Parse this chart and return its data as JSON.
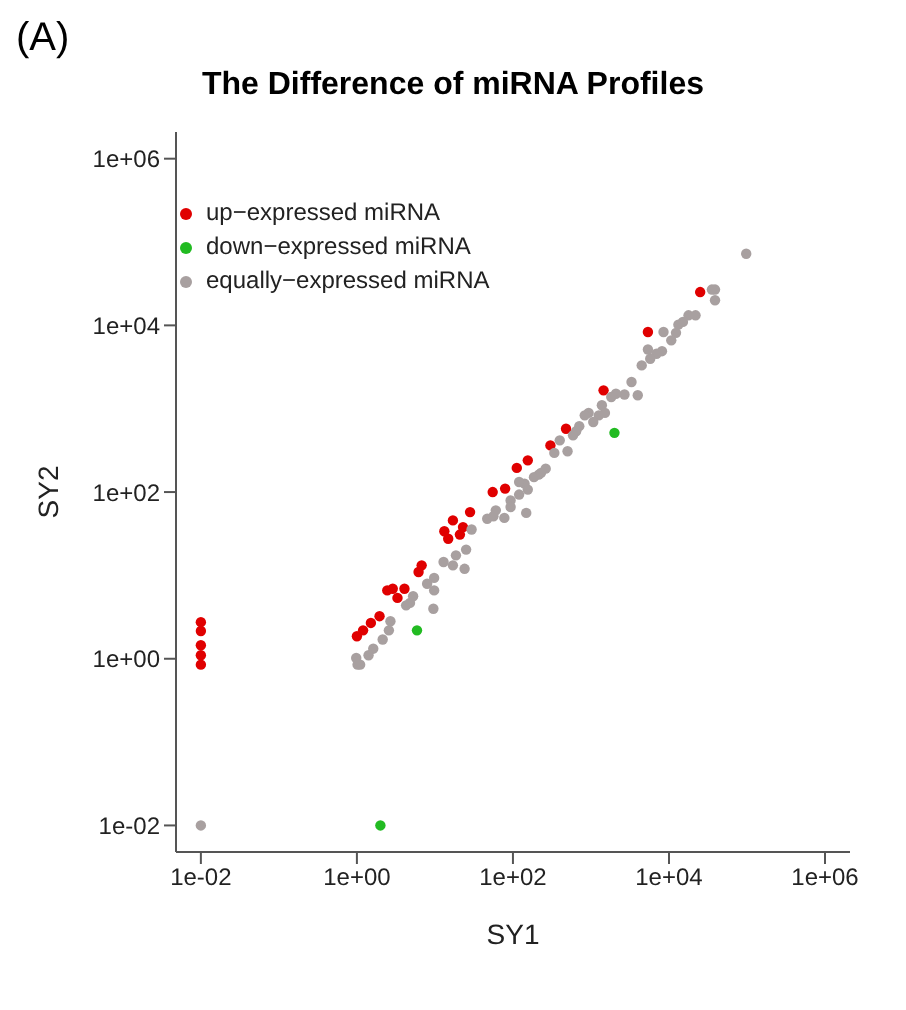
{
  "chart_data": {
    "type": "scatter",
    "title": "The Difference of miRNA Profiles",
    "xlabel": "SY1",
    "ylabel": "SY2",
    "annotations": [
      "(A)"
    ],
    "log": "xy",
    "grid": false,
    "legend": "top left",
    "marker": "circle",
    "xlim": [
      0.0048,
      2090000
    ],
    "ylim": [
      0.0048,
      2090000
    ],
    "xticks": [
      {
        "value": 0.01,
        "label": "1e-02"
      },
      {
        "value": 1,
        "label": "1e+00"
      },
      {
        "value": 100,
        "label": "1e+02"
      },
      {
        "value": 10000,
        "label": "1e+04"
      },
      {
        "value": 1000000,
        "label": "1e+06"
      }
    ],
    "yticks": [
      {
        "value": 0.01,
        "label": "1e-02"
      },
      {
        "value": 1,
        "label": "1e+00"
      },
      {
        "value": 100,
        "label": "1e+02"
      },
      {
        "value": 10000,
        "label": "1e+04"
      },
      {
        "value": 1000000,
        "label": "1e+06"
      }
    ],
    "series": [
      {
        "name": "up−expressed miRNA",
        "color": "#e00000",
        "x": [
          25100,
          5370,
          1450,
          479,
          302,
          155,
          112,
          79.4,
          55,
          28.2,
          17,
          22.9,
          20.9,
          14.8,
          13.2,
          6.76,
          6.17,
          4.07,
          2.88,
          2.45,
          3.31,
          1.95,
          1.51,
          1.2,
          1,
          0.01,
          0.01,
          0.01,
          0.01,
          0.01
        ],
        "values": [
          25100,
          8320,
          1660,
          575,
          363,
          240,
          195,
          110,
          100,
          57.5,
          45.7,
          38,
          30.9,
          27.5,
          33.9,
          13.2,
          11,
          6.92,
          6.92,
          6.61,
          5.37,
          3.24,
          2.69,
          2.19,
          1.86,
          2.75,
          2.15,
          1.45,
          1.1,
          0.85
        ]
      },
      {
        "name": "down−expressed miRNA",
        "color": "#22bb22",
        "x": [
          2000,
          5.89,
          2.0
        ],
        "values": [
          513,
          2.19,
          0.01
        ]
      },
      {
        "name": "equally−expressed miRNA",
        "color": "#a8a0a0",
        "x": [
          97700,
          38900,
          35500,
          38900,
          21900,
          17800,
          15100,
          13200,
          12300,
          10700,
          8510,
          8130,
          6920,
          5750,
          5370,
          4470,
          3310,
          3980,
          2690,
          2090,
          1820,
          1380,
          1510,
          1260,
          1070,
          933,
          832,
          708,
          646,
          589,
          501,
          398,
          339,
          263,
          214,
          186,
          141,
          155,
          120,
          148,
          93.3,
          77.6,
          60.3,
          46.8,
          29.5,
          25.1,
          24,
          229,
          120,
          93.3,
          56.2,
          18.6,
          12.9,
          17,
          9.77,
          9.77,
          7.94,
          9.55,
          5.25,
          4.79,
          4.27,
          2.69,
          2.57,
          2.14,
          1.62,
          1.41,
          1.1,
          0.98,
          1.02,
          0.01
        ],
        "values": [
          72400,
          26900,
          26900,
          20000,
          13200,
          13200,
          11000,
          10200,
          8130,
          6610,
          8320,
          4900,
          4570,
          3980,
          5130,
          3310,
          2090,
          1450,
          1480,
          1510,
          1380,
          1100,
          891,
          832,
          692,
          891,
          832,
          617,
          537,
          479,
          309,
          417,
          295,
          191,
          162,
          151,
          126,
          107,
          93.3,
          56.2,
          79.4,
          49,
          60.3,
          47.9,
          35.5,
          20.4,
          12,
          170,
          132,
          66.1,
          51.3,
          17.4,
          14.5,
          13.2,
          9.33,
          6.61,
          7.94,
          3.98,
          5.62,
          4.68,
          4.37,
          2.82,
          2.19,
          1.7,
          1.32,
          1.1,
          0.85,
          1.02,
          0.85,
          0.01
        ]
      }
    ]
  }
}
